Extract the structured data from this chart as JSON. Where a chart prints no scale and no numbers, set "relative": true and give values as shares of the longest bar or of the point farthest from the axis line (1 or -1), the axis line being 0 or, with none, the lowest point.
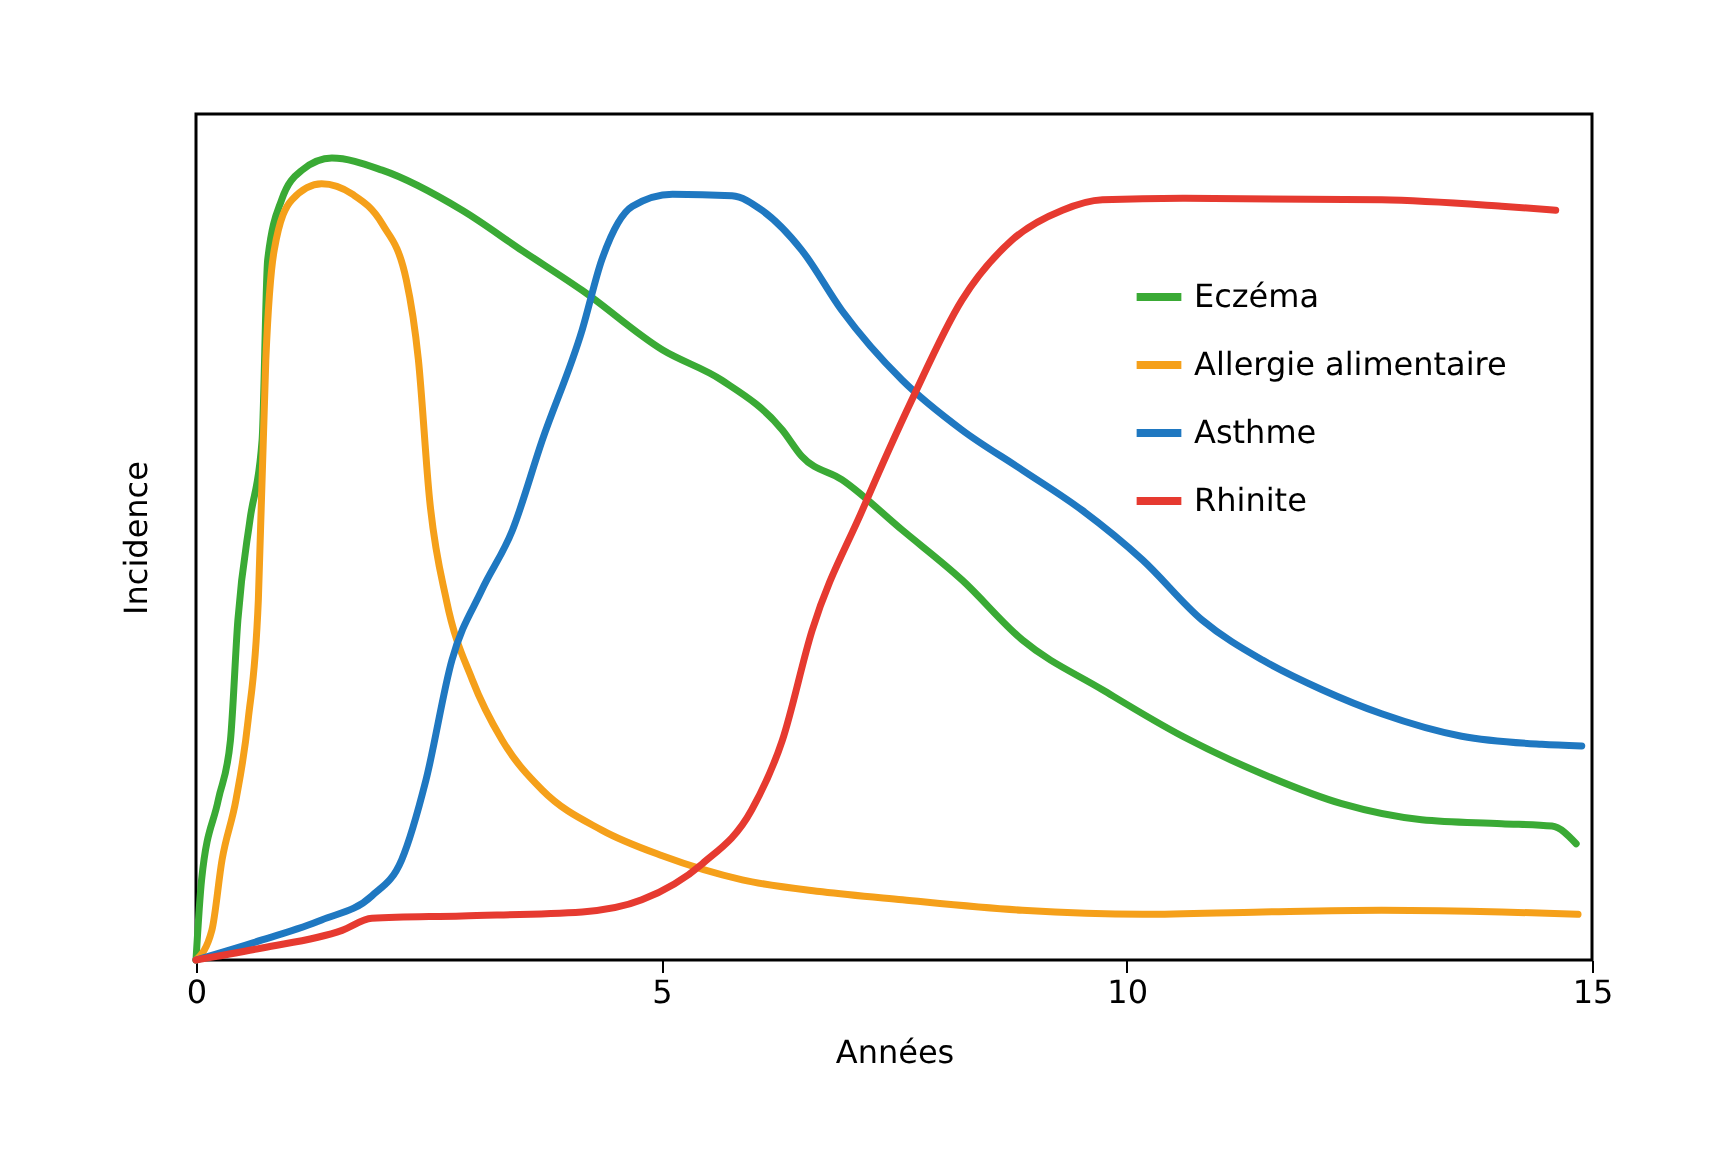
{
  "chart_data": {
    "type": "line",
    "xlabel": "Années",
    "ylabel": "Incidence",
    "relative": true,
    "xlim": [
      0,
      15
    ],
    "xticks": [
      0,
      5,
      10,
      15
    ],
    "grid": false,
    "legend": "top right",
    "line_style": "solid",
    "marker": "none",
    "series": [
      {
        "name": "Eczéma",
        "color": "#3aaa35",
        "x": [
          0,
          0.06,
          0.24,
          0.37,
          0.45,
          0.58,
          0.71,
          0.77,
          0.92,
          1.14,
          1.46,
          2.0,
          2.86,
          3.5,
          4.15,
          5.01,
          5.65,
          6.3,
          6.51,
          6.94,
          7.59,
          8.23,
          8.88,
          9.74,
          10.6,
          11.46,
          12.31,
          13.17,
          14.03,
          14.57,
          14.83
        ],
        "values": [
          0,
          0.1,
          0.2,
          0.274,
          0.424,
          0.549,
          0.648,
          0.873,
          0.948,
          0.985,
          1.0,
          0.985,
          0.935,
          0.885,
          0.835,
          0.761,
          0.723,
          0.661,
          0.628,
          0.599,
          0.536,
          0.474,
          0.399,
          0.337,
          0.279,
          0.232,
          0.195,
          0.175,
          0.17,
          0.167,
          0.145
        ]
      },
      {
        "name": "Allergie alimentaire",
        "color": "#f5a01a",
        "x": [
          0,
          0.17,
          0.28,
          0.43,
          0.56,
          0.67,
          0.75,
          0.84,
          1.03,
          1.35,
          1.68,
          2.0,
          2.26,
          2.39,
          2.51,
          2.69,
          2.97,
          3.29,
          3.72,
          4.36,
          5.01,
          5.87,
          6.73,
          7.59,
          8.88,
          10.17,
          11.46,
          12.74,
          14.03,
          14.85
        ],
        "values": [
          0,
          0.037,
          0.125,
          0.2,
          0.299,
          0.449,
          0.748,
          0.885,
          0.948,
          0.968,
          0.955,
          0.918,
          0.848,
          0.748,
          0.574,
          0.449,
          0.349,
          0.274,
          0.212,
          0.162,
          0.13,
          0.1,
          0.085,
          0.075,
          0.062,
          0.057,
          0.06,
          0.062,
          0.06,
          0.057
        ]
      },
      {
        "name": "Asthme",
        "color": "#1f78c1",
        "x": [
          0,
          0.71,
          1.35,
          1.89,
          2.21,
          2.47,
          2.75,
          3.07,
          3.4,
          3.72,
          4.15,
          4.36,
          4.69,
          5.12,
          5.76,
          6.08,
          6.51,
          6.94,
          7.59,
          8.23,
          8.88,
          9.52,
          10.17,
          10.81,
          11.46,
          12.1,
          12.74,
          13.6,
          14.46,
          14.89
        ],
        "values": [
          0,
          0.025,
          0.05,
          0.08,
          0.125,
          0.224,
          0.374,
          0.461,
          0.536,
          0.648,
          0.786,
          0.873,
          0.94,
          0.955,
          0.953,
          0.935,
          0.885,
          0.81,
          0.723,
          0.661,
          0.611,
          0.561,
          0.499,
          0.424,
          0.374,
          0.337,
          0.307,
          0.279,
          0.269,
          0.267
        ]
      },
      {
        "name": "Rhinite",
        "color": "#e63a30",
        "x": [
          0,
          0.71,
          1.57,
          1.89,
          2.86,
          4.15,
          4.79,
          5.44,
          5.97,
          6.3,
          6.62,
          7.16,
          7.69,
          8.23,
          8.77,
          9.31,
          9.74,
          10.6,
          12.74,
          14.03,
          14.61
        ],
        "values": [
          0,
          0.015,
          0.037,
          0.052,
          0.055,
          0.06,
          0.075,
          0.12,
          0.187,
          0.274,
          0.411,
          0.561,
          0.698,
          0.823,
          0.898,
          0.935,
          0.948,
          0.95,
          0.948,
          0.94,
          0.935
        ]
      }
    ]
  }
}
